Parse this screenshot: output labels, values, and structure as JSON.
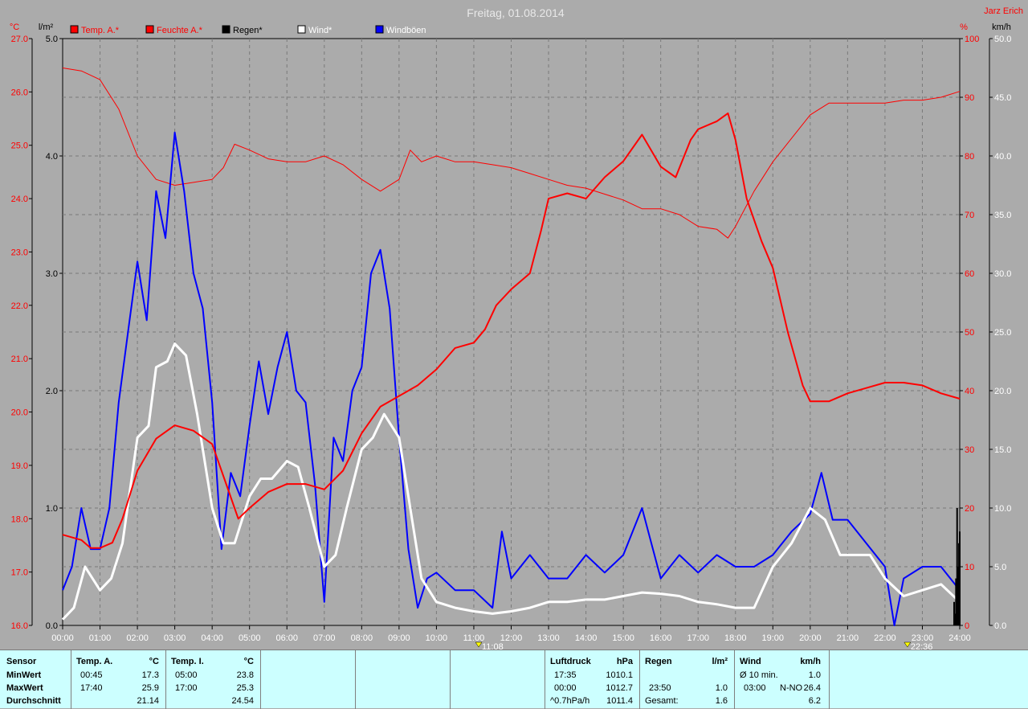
{
  "header": {
    "title": "Freitag, 01.08.2014",
    "author": "Jarz Erich",
    "unit_left1": "°C",
    "unit_left2": "l/m²",
    "unit_right1": "%",
    "unit_right2": "km/h"
  },
  "legend": [
    {
      "label": "Temp. A.*",
      "color": "#ff0000",
      "text_color": "#ff0000"
    },
    {
      "label": "Feuchte A.*",
      "color": "#ff0000",
      "text_color": "#ff0000"
    },
    {
      "label": "Regen*",
      "color": "#000000",
      "text_color": "#000000"
    },
    {
      "label": "Wind*",
      "color": "#ffffff",
      "text_color": "#ffffff"
    },
    {
      "label": "Windböen",
      "color": "#0000ff",
      "text_color": "#ffffff"
    }
  ],
  "colors": {
    "background": "#ababab",
    "grid": "#7a7a7a",
    "temp": "#ff0000",
    "humidity": "#ff0000",
    "rain": "#000000",
    "wind": "#ffffff",
    "gust": "#0000ff",
    "footer": "#ccffff"
  },
  "chart_data": {
    "type": "line",
    "title": "Freitag, 01.08.2014",
    "x_ticks": [
      "00:00",
      "01:00",
      "02:00",
      "03:00",
      "04:00",
      "05:00",
      "06:00",
      "07:00",
      "08:00",
      "09:00",
      "10:00",
      "11:00",
      "12:00",
      "13:00",
      "14:00",
      "15:00",
      "16:00",
      "17:00",
      "18:00",
      "19:00",
      "20:00",
      "21:00",
      "22:00",
      "23:00",
      "24:00"
    ],
    "axes": {
      "temp_c": {
        "ticks": [
          "16.0",
          "17.0",
          "18.0",
          "19.0",
          "20.0",
          "21.0",
          "22.0",
          "23.0",
          "24.0",
          "25.0",
          "26.0",
          "27.0"
        ],
        "range": [
          16,
          27
        ]
      },
      "rain_l_m2": {
        "ticks": [
          "0.0",
          "1.0",
          "2.0",
          "3.0",
          "4.0",
          "5.0"
        ],
        "range": [
          0,
          5
        ]
      },
      "humidity_pct": {
        "ticks": [
          "0",
          "10",
          "20",
          "30",
          "40",
          "50",
          "60",
          "70",
          "80",
          "90",
          "100"
        ],
        "range": [
          0,
          100
        ]
      },
      "wind_kmh": {
        "ticks": [
          "0.0",
          "5.0",
          "10.0",
          "15.0",
          "20.0",
          "25.0",
          "30.0",
          "35.0",
          "40.0",
          "45.0",
          "50.0"
        ],
        "range": [
          0,
          50
        ]
      }
    },
    "markers": [
      {
        "time": "11:08",
        "hour": 11.13
      },
      {
        "time": "22:36",
        "hour": 22.6
      }
    ],
    "series": [
      {
        "name": "Temp. A.*",
        "axis": "temp_c",
        "points": [
          [
            0,
            17.7
          ],
          [
            0.5,
            17.6
          ],
          [
            0.75,
            17.45
          ],
          [
            1,
            17.45
          ],
          [
            1.33,
            17.55
          ],
          [
            1.6,
            18.0
          ],
          [
            2,
            18.9
          ],
          [
            2.5,
            19.5
          ],
          [
            3,
            19.75
          ],
          [
            3.5,
            19.65
          ],
          [
            4,
            19.4
          ],
          [
            4.4,
            18.6
          ],
          [
            4.7,
            18.0
          ],
          [
            5,
            18.2
          ],
          [
            5.5,
            18.5
          ],
          [
            6,
            18.65
          ],
          [
            6.5,
            18.65
          ],
          [
            7,
            18.55
          ],
          [
            7.5,
            18.9
          ],
          [
            8,
            19.6
          ],
          [
            8.5,
            20.1
          ],
          [
            9,
            20.3
          ],
          [
            9.5,
            20.5
          ],
          [
            10,
            20.8
          ],
          [
            10.5,
            21.2
          ],
          [
            11,
            21.3
          ],
          [
            11.3,
            21.55
          ],
          [
            11.6,
            22.0
          ],
          [
            12,
            22.3
          ],
          [
            12.5,
            22.6
          ],
          [
            12.8,
            23.4
          ],
          [
            13,
            24.0
          ],
          [
            13.5,
            24.1
          ],
          [
            14,
            24.0
          ],
          [
            14.5,
            24.4
          ],
          [
            15,
            24.7
          ],
          [
            15.5,
            25.2
          ],
          [
            16,
            24.6
          ],
          [
            16.4,
            24.4
          ],
          [
            16.8,
            25.1
          ],
          [
            17,
            25.3
          ],
          [
            17.5,
            25.45
          ],
          [
            17.8,
            25.6
          ],
          [
            18,
            25.1
          ],
          [
            18.3,
            24.0
          ],
          [
            18.7,
            23.2
          ],
          [
            19,
            22.7
          ],
          [
            19.4,
            21.5
          ],
          [
            19.8,
            20.5
          ],
          [
            20,
            20.2
          ],
          [
            20.5,
            20.2
          ],
          [
            21,
            20.35
          ],
          [
            21.5,
            20.45
          ],
          [
            22,
            20.55
          ],
          [
            22.5,
            20.55
          ],
          [
            23,
            20.5
          ],
          [
            23.5,
            20.35
          ],
          [
            24,
            20.25
          ]
        ]
      },
      {
        "name": "Feuchte A.*",
        "axis": "humidity_pct",
        "points": [
          [
            0,
            95
          ],
          [
            0.5,
            94.5
          ],
          [
            1,
            93
          ],
          [
            1.5,
            88
          ],
          [
            2,
            80
          ],
          [
            2.5,
            76
          ],
          [
            3,
            75
          ],
          [
            3.5,
            75.5
          ],
          [
            4,
            76
          ],
          [
            4.3,
            78
          ],
          [
            4.6,
            82
          ],
          [
            5,
            81
          ],
          [
            5.5,
            79.5
          ],
          [
            6,
            79
          ],
          [
            6.5,
            79
          ],
          [
            7,
            80
          ],
          [
            7.5,
            78.5
          ],
          [
            8,
            76
          ],
          [
            8.5,
            74
          ],
          [
            9,
            76
          ],
          [
            9.3,
            81
          ],
          [
            9.6,
            79
          ],
          [
            10,
            80
          ],
          [
            10.5,
            79
          ],
          [
            11,
            79
          ],
          [
            11.5,
            78.5
          ],
          [
            12,
            78
          ],
          [
            12.5,
            77
          ],
          [
            13,
            76
          ],
          [
            13.5,
            75
          ],
          [
            14,
            74.5
          ],
          [
            14.5,
            73.5
          ],
          [
            15,
            72.5
          ],
          [
            15.5,
            71
          ],
          [
            16,
            71
          ],
          [
            16.5,
            70
          ],
          [
            17,
            68
          ],
          [
            17.5,
            67.5
          ],
          [
            17.8,
            66
          ],
          [
            18,
            68
          ],
          [
            18.5,
            74
          ],
          [
            19,
            79
          ],
          [
            19.5,
            83
          ],
          [
            20,
            87
          ],
          [
            20.5,
            89
          ],
          [
            21,
            89
          ],
          [
            22,
            89
          ],
          [
            22.5,
            89.5
          ],
          [
            23,
            89.5
          ],
          [
            23.5,
            90
          ],
          [
            24,
            91
          ]
        ]
      },
      {
        "name": "Wind*",
        "axis": "wind_kmh",
        "points": [
          [
            0,
            0.5
          ],
          [
            0.3,
            1.5
          ],
          [
            0.6,
            5
          ],
          [
            1,
            3
          ],
          [
            1.3,
            4
          ],
          [
            1.6,
            7
          ],
          [
            2,
            16
          ],
          [
            2.3,
            17
          ],
          [
            2.5,
            22
          ],
          [
            2.8,
            22.5
          ],
          [
            3,
            24
          ],
          [
            3.3,
            23
          ],
          [
            3.6,
            18
          ],
          [
            4,
            10
          ],
          [
            4.3,
            7
          ],
          [
            4.6,
            7
          ],
          [
            5,
            11
          ],
          [
            5.3,
            12.5
          ],
          [
            5.6,
            12.5
          ],
          [
            6,
            14
          ],
          [
            6.3,
            13.5
          ],
          [
            6.6,
            10
          ],
          [
            7,
            5
          ],
          [
            7.3,
            6
          ],
          [
            7.6,
            10
          ],
          [
            8,
            15
          ],
          [
            8.3,
            16
          ],
          [
            8.6,
            18
          ],
          [
            9,
            16
          ],
          [
            9.3,
            10
          ],
          [
            9.6,
            4
          ],
          [
            10,
            2
          ],
          [
            10.5,
            1.5
          ],
          [
            11,
            1.2
          ],
          [
            11.5,
            1
          ],
          [
            12,
            1.2
          ],
          [
            12.5,
            1.5
          ],
          [
            13,
            2
          ],
          [
            13.5,
            2
          ],
          [
            14,
            2.2
          ],
          [
            14.5,
            2.2
          ],
          [
            15,
            2.5
          ],
          [
            15.5,
            2.8
          ],
          [
            16,
            2.7
          ],
          [
            16.5,
            2.5
          ],
          [
            17,
            2
          ],
          [
            17.5,
            1.8
          ],
          [
            18,
            1.5
          ],
          [
            18.5,
            1.5
          ],
          [
            19,
            5
          ],
          [
            19.5,
            7
          ],
          [
            20,
            10
          ],
          [
            20.4,
            9
          ],
          [
            20.8,
            6
          ],
          [
            21.2,
            6
          ],
          [
            21.6,
            6
          ],
          [
            22,
            4
          ],
          [
            22.5,
            2.5
          ],
          [
            23,
            3
          ],
          [
            23.5,
            3.5
          ],
          [
            24,
            2
          ]
        ]
      },
      {
        "name": "Windböen",
        "axis": "wind_kmh",
        "points": [
          [
            0,
            3
          ],
          [
            0.25,
            5
          ],
          [
            0.5,
            10
          ],
          [
            0.75,
            6.5
          ],
          [
            1,
            6.5
          ],
          [
            1.25,
            10
          ],
          [
            1.5,
            19
          ],
          [
            1.75,
            25
          ],
          [
            2,
            31
          ],
          [
            2.25,
            26
          ],
          [
            2.5,
            37
          ],
          [
            2.75,
            33
          ],
          [
            3,
            42
          ],
          [
            3.25,
            37
          ],
          [
            3.5,
            30
          ],
          [
            3.75,
            27
          ],
          [
            4,
            19
          ],
          [
            4.25,
            6.5
          ],
          [
            4.5,
            13
          ],
          [
            4.75,
            11
          ],
          [
            5,
            17
          ],
          [
            5.25,
            22.5
          ],
          [
            5.5,
            18
          ],
          [
            5.75,
            22
          ],
          [
            6,
            25
          ],
          [
            6.25,
            20
          ],
          [
            6.5,
            19
          ],
          [
            6.75,
            12
          ],
          [
            7,
            2
          ],
          [
            7.25,
            16
          ],
          [
            7.5,
            14
          ],
          [
            7.75,
            20
          ],
          [
            8,
            22
          ],
          [
            8.25,
            30
          ],
          [
            8.5,
            32
          ],
          [
            8.75,
            27
          ],
          [
            9,
            16
          ],
          [
            9.25,
            6.5
          ],
          [
            9.5,
            1.5
          ],
          [
            9.75,
            4
          ],
          [
            10,
            4.5
          ],
          [
            10.5,
            3
          ],
          [
            11,
            3
          ],
          [
            11.5,
            1.5
          ],
          [
            11.75,
            8
          ],
          [
            12,
            4
          ],
          [
            12.5,
            6
          ],
          [
            13,
            4
          ],
          [
            13.5,
            4
          ],
          [
            14,
            6
          ],
          [
            14.5,
            4.5
          ],
          [
            15,
            6
          ],
          [
            15.5,
            10
          ],
          [
            15.75,
            7
          ],
          [
            16,
            4
          ],
          [
            16.5,
            6
          ],
          [
            17,
            4.5
          ],
          [
            17.5,
            6
          ],
          [
            18,
            5
          ],
          [
            18.5,
            5
          ],
          [
            19,
            6
          ],
          [
            19.5,
            8
          ],
          [
            20,
            9.5
          ],
          [
            20.3,
            13
          ],
          [
            20.6,
            9
          ],
          [
            21,
            9
          ],
          [
            21.5,
            7
          ],
          [
            22,
            5
          ],
          [
            22.25,
            0
          ],
          [
            22.5,
            4
          ],
          [
            23,
            5
          ],
          [
            23.5,
            5
          ],
          [
            24,
            3
          ]
        ]
      },
      {
        "name": "Regen*",
        "axis": "rain_l_m2",
        "points": [
          [
            23.83,
            0
          ],
          [
            23.85,
            0.2
          ],
          [
            23.88,
            0.1
          ],
          [
            23.9,
            0.4
          ],
          [
            23.93,
            1.0
          ],
          [
            23.96,
            0.5
          ],
          [
            23.98,
            0.7
          ],
          [
            24,
            0.8
          ]
        ]
      }
    ]
  },
  "footer": {
    "sensor": {
      "title": "Sensor",
      "rows": [
        "MinWert",
        "MaxWert",
        "Durchschnitt"
      ]
    },
    "temp_a": {
      "title": "Temp. A.",
      "unit": "°C",
      "min_time": "00:45",
      "min": "17.3",
      "max_time": "17:40",
      "max": "25.9",
      "avg": "21.14"
    },
    "temp_i": {
      "title": "Temp. I.",
      "unit": "°C",
      "min_time": "05:00",
      "min": "23.8",
      "max_time": "17:00",
      "max": "25.3",
      "avg": "24.54"
    },
    "luftdruck": {
      "title": "Luftdruck",
      "unit": "hPa",
      "min_time": "17:35",
      "min": "1010.1",
      "max_time": "00:00",
      "max": "1012.7",
      "trend": "^0.7hPa/h",
      "avg": "1011.4"
    },
    "regen": {
      "title": "Regen",
      "unit": "l/m²",
      "max_time": "23:50",
      "max": "1.0",
      "total_label": "Gesamt:",
      "total": "1.6"
    },
    "wind": {
      "title": "Wind",
      "unit": "km/h",
      "avg_label": "Ø 10 min.",
      "avg10": "1.0",
      "max_time": "03:00",
      "max_dir": "N-NO",
      "max": "26.4",
      "avg": "6.2"
    }
  }
}
